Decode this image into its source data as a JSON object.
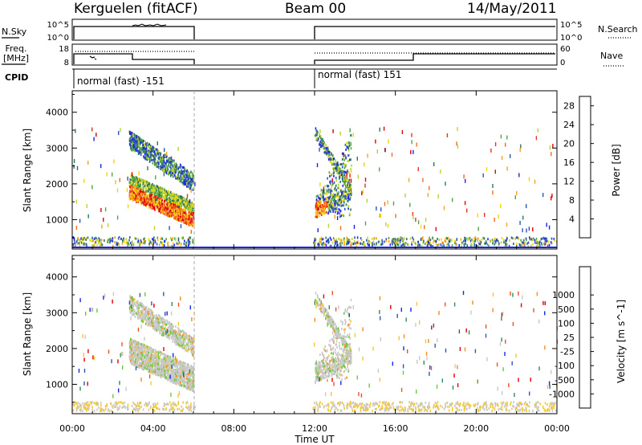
{
  "header": {
    "station": "Kerguelen (fitACF)",
    "beam": "Beam 00",
    "date": "14/May/2011"
  },
  "strip_labels": {
    "nsky": "N.Sky",
    "nsearch": "N.Search",
    "freq_line1": "Freq.",
    "freq_line2": "[MHz]",
    "nave": "Nave",
    "cpid": "CPID",
    "nsky_ticks": [
      "10^5",
      "10^0"
    ],
    "nsearch_ticks": [
      "10^5",
      "10^0"
    ],
    "freq_ticks": [
      "18",
      "8"
    ],
    "nave_ticks": [
      "60",
      "0"
    ]
  },
  "cpid_segments": [
    {
      "start": 0,
      "label": "normal (fast) -151"
    },
    {
      "start": 12,
      "label": "normal (fast) 151"
    }
  ],
  "colors": {
    "power_scale": [
      "#1a23e6",
      "#2a56b8",
      "#2e7a5a",
      "#4fa34a",
      "#b8d42e",
      "#f2d40b",
      "#f5a11a",
      "#f26b1c",
      "#e8311e",
      "#e00000"
    ],
    "velocity_scale": [
      "#e00000",
      "#f0501e",
      "#f58c1e",
      "#f5c832",
      "#c8c8c8",
      "#c8c8c8",
      "#6cc83a",
      "#2e8a5a",
      "#2a56b8",
      "#1a23e6"
    ]
  },
  "chart_data": [
    {
      "type": "heatmap",
      "title": "",
      "quantity": "Power",
      "xlabel": "Time UT",
      "ylabel": "Slant Range [km]",
      "colorbar_label": "Power [dB]",
      "colorbar_ticks": [
        "4",
        "8",
        "12",
        "16",
        "20",
        "24",
        "28"
      ],
      "colorbar_range": [
        0,
        30
      ],
      "xlim": [
        0,
        24
      ],
      "ylim": [
        180,
        4600
      ],
      "x_ticks": [
        "00:00",
        "04:00",
        "08:00",
        "12:00",
        "16:00",
        "20:00",
        "00:00"
      ],
      "y_ticks": [
        "1000",
        "2000",
        "3000",
        "4000"
      ],
      "data_gap_ut": [
        6.0,
        12.0
      ],
      "echo_regions": [
        {
          "t": [
            2.8,
            6.0
          ],
          "range_km": [
            650,
            1800
          ],
          "value": "20-30 dB"
        },
        {
          "t": [
            2.8,
            6.0
          ],
          "range_km": [
            1900,
            3500
          ],
          "value": "4-12 dB"
        },
        {
          "t": [
            12.0,
            13.8
          ],
          "range_km": [
            900,
            3500
          ],
          "value": "4-28 dB"
        },
        {
          "t": [
            0,
            24
          ],
          "range_km": [
            200,
            450
          ],
          "value": "4-16 dB"
        }
      ]
    },
    {
      "type": "heatmap",
      "title": "",
      "quantity": "Velocity",
      "xlabel": "Time UT",
      "ylabel": "Slant Range [km]",
      "colorbar_label": "Velocity [m s^-1]",
      "colorbar_ticks": [
        "-1000",
        "-500",
        "-100",
        "-25",
        "25",
        "100",
        "500",
        "1000"
      ],
      "xlim": [
        0,
        24
      ],
      "ylim": [
        180,
        4600
      ],
      "x_ticks": [
        "00:00",
        "04:00",
        "08:00",
        "12:00",
        "16:00",
        "20:00",
        "00:00"
      ],
      "y_ticks": [
        "1000",
        "2000",
        "3000",
        "4000"
      ],
      "data_gap_ut": [
        6.0,
        12.0
      ],
      "echo_regions": [
        {
          "t": [
            2.8,
            6.0
          ],
          "range_km": [
            650,
            3500
          ],
          "value": "-25 to 25 m/s (ground scatter)"
        },
        {
          "t": [
            12.0,
            13.8
          ],
          "range_km": [
            900,
            3500
          ],
          "value": "-25 to 25 m/s (ground scatter)"
        }
      ]
    }
  ]
}
